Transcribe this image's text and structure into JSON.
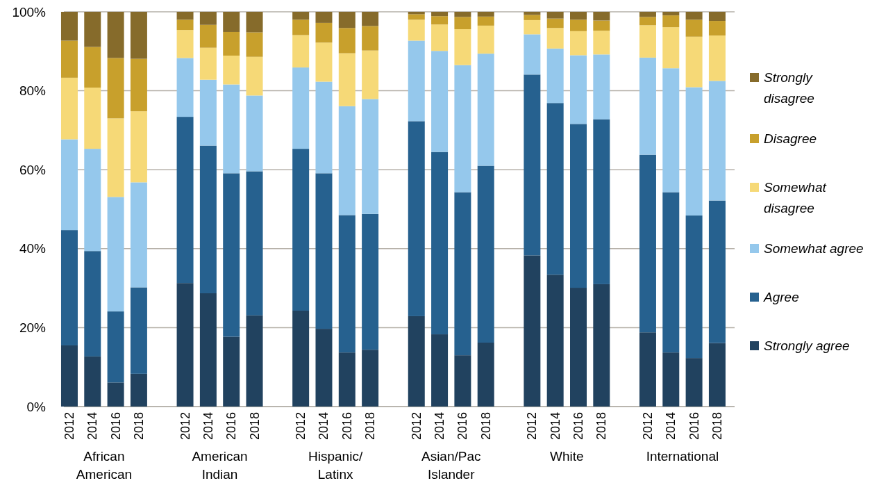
{
  "chart_data": {
    "type": "bar",
    "stacked": true,
    "categories": [
      "2012",
      "2014",
      "2016",
      "2018",
      null,
      "2012",
      "2014",
      "2016",
      "2018",
      null,
      "2012",
      "2014",
      "2016",
      "2018",
      null,
      "2012",
      "2014",
      "2016",
      "2018",
      null,
      "2012",
      "2014",
      "2016",
      "2018",
      null,
      "2012",
      "2014",
      "2016",
      "2018"
    ],
    "annotations": [
      "African American",
      "American Indian",
      "Hispanic/Latinx",
      "Asian/Pac Islander",
      "White",
      "International"
    ],
    "series": [
      {
        "name": "Strongly agree",
        "color": "#21425f",
        "values": [
          15.5,
          12.7,
          6.1,
          8.3,
          null,
          31.3,
          28.7,
          17.7,
          23.1,
          null,
          24.3,
          19.7,
          13.7,
          14.4,
          null,
          22.9,
          18.3,
          13.0,
          16.2,
          null,
          38.3,
          33.4,
          30.1,
          31.0,
          null,
          18.8,
          13.7,
          12.3,
          16.1
        ]
      },
      {
        "name": "Agree",
        "color": "#26618f",
        "values": [
          29.2,
          26.7,
          18.0,
          21.9,
          null,
          42.1,
          37.4,
          41.4,
          36.5,
          null,
          41.0,
          39.4,
          34.8,
          34.4,
          null,
          49.4,
          46.2,
          41.3,
          44.8,
          null,
          45.8,
          43.5,
          41.5,
          41.8,
          null,
          45.0,
          40.6,
          36.1,
          36.1
        ]
      },
      {
        "name": "Somewhat agree",
        "color": "#95c8ec",
        "values": [
          23.0,
          25.9,
          29.0,
          26.6,
          null,
          14.9,
          16.7,
          22.5,
          19.2,
          null,
          20.6,
          23.2,
          27.6,
          29.1,
          null,
          20.4,
          25.6,
          32.2,
          28.4,
          null,
          10.2,
          13.8,
          17.4,
          16.4,
          null,
          24.6,
          31.4,
          32.5,
          30.3
        ]
      },
      {
        "name": "Somewhat disagree",
        "color": "#f6d977",
        "values": [
          15.6,
          15.5,
          19.9,
          18.0,
          null,
          7.1,
          8.1,
          7.3,
          9.8,
          null,
          8.2,
          9.9,
          13.4,
          12.3,
          null,
          5.3,
          6.7,
          9.1,
          7.1,
          null,
          3.6,
          5.2,
          6.1,
          6.0,
          null,
          8.2,
          10.4,
          12.8,
          11.5
        ]
      },
      {
        "name": "Disagree",
        "color": "#c8a02c",
        "values": [
          9.4,
          10.3,
          15.3,
          13.3,
          null,
          2.6,
          5.8,
          6.0,
          6.2,
          null,
          3.9,
          5.0,
          6.4,
          6.2,
          null,
          1.4,
          2.1,
          3.1,
          2.3,
          null,
          1.3,
          2.4,
          2.9,
          2.6,
          null,
          2.1,
          3.0,
          4.3,
          3.7
        ]
      },
      {
        "name": "Strongly disagree",
        "color": "#866b2b",
        "values": [
          7.3,
          8.9,
          11.7,
          11.9,
          null,
          2.0,
          3.3,
          5.1,
          5.2,
          null,
          2.0,
          2.8,
          4.1,
          3.6,
          null,
          0.6,
          1.1,
          1.3,
          1.2,
          null,
          0.8,
          1.7,
          2.0,
          2.2,
          null,
          1.3,
          0.9,
          2.0,
          2.3
        ]
      }
    ],
    "ylim": [
      0,
      100
    ],
    "yticks": [
      {
        "value": 0,
        "label": "0%"
      },
      {
        "value": 20,
        "label": "20%"
      },
      {
        "value": 40,
        "label": "40%"
      },
      {
        "value": 60,
        "label": "60%"
      },
      {
        "value": 80,
        "label": "80%"
      },
      {
        "value": 100,
        "label": "100%"
      }
    ],
    "grid": "y",
    "legend": "right"
  }
}
